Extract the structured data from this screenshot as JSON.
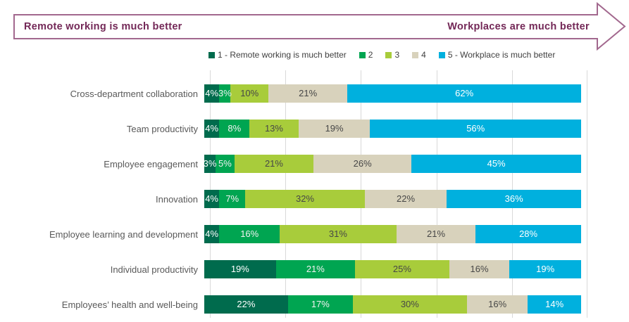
{
  "banner": {
    "left_label": "Remote working is much better",
    "right_label": "Workplaces are much better",
    "text_color": "#732857",
    "border_color": "#A2688E"
  },
  "legend": {
    "items": [
      {
        "label": "1 - Remote working is much better",
        "color": "#006B4D"
      },
      {
        "label": "2",
        "color": "#00A551"
      },
      {
        "label": "3",
        "color": "#A8CC3B"
      },
      {
        "label": "4",
        "color": "#D8D2BC"
      },
      {
        "label": "5 - Workplace is much better",
        "color": "#00B0DE"
      }
    ]
  },
  "chart_data": {
    "type": "bar",
    "stacked": true,
    "orientation": "horizontal",
    "unit": "%",
    "xlim": [
      0,
      100
    ],
    "gridlines_percent": [
      0,
      20,
      40,
      60,
      80,
      100
    ],
    "gridline_color": "#d9d9d9",
    "legend_position": "top",
    "categories": [
      "Cross-department collaboration",
      "Team productivity",
      "Employee engagement",
      "Innovation",
      "Employee learning and development",
      "Individual productivity",
      "Employees’ health and well-being"
    ],
    "series": [
      {
        "name": "1 - Remote working is much better",
        "color": "#006B4D",
        "label_color": "#ffffff",
        "values": [
          4,
          4,
          3,
          4,
          4,
          19,
          22
        ]
      },
      {
        "name": "2",
        "color": "#00A551",
        "label_color": "#f2f2f2",
        "values": [
          3,
          8,
          5,
          7,
          16,
          21,
          17
        ]
      },
      {
        "name": "3",
        "color": "#A8CC3B",
        "label_color": "#474747",
        "values": [
          10,
          13,
          21,
          32,
          31,
          25,
          30
        ]
      },
      {
        "name": "4",
        "color": "#D8D2BC",
        "label_color": "#474747",
        "values": [
          21,
          19,
          26,
          22,
          21,
          16,
          16
        ]
      },
      {
        "name": "5 - Workplace is much better",
        "color": "#00B0DE",
        "label_color": "#ffffff",
        "values": [
          62,
          56,
          45,
          36,
          28,
          19,
          14
        ]
      }
    ]
  }
}
